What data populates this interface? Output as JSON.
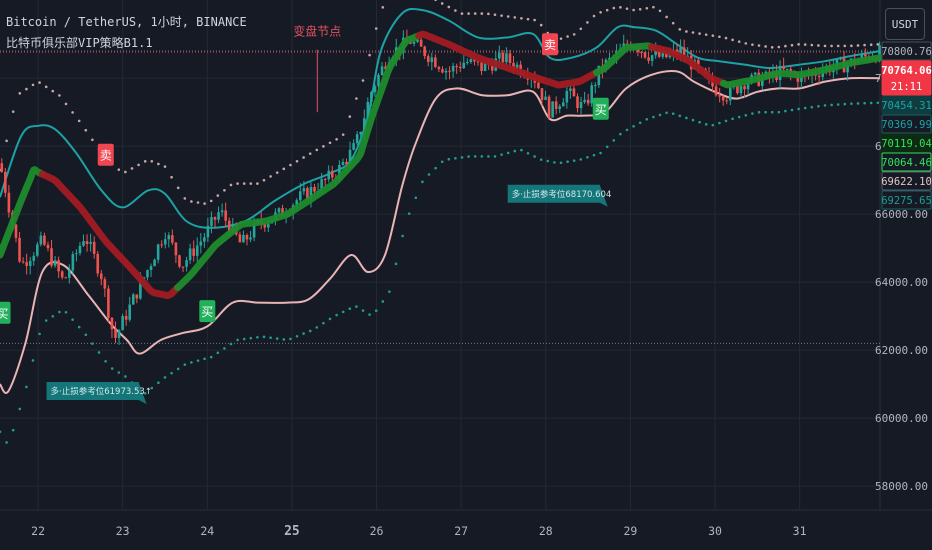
{
  "header": {
    "symbol_line": "Bitcoin / TetherUS, 1小时, BINANCE",
    "indicator_name": "比特币俱乐部VIP策略B1.1",
    "currency_button": "USDT"
  },
  "colors": {
    "background": "#161a25",
    "grid": "#242832",
    "candle_up": "#26a69a",
    "candle_down": "#ef5350",
    "ma_up": "#1e8c2c",
    "ma_down": "#a11b22",
    "upper_band": "#1ca2a5",
    "lower_band": "#e8b4b4",
    "upper_dots": "#c9a6a6",
    "lower_dots": "#1f9e8f",
    "sell_badge": "#f04652",
    "buy_badge": "#22b15a",
    "stop_label": "#15767a",
    "annotation_text": "#e0505f"
  },
  "chart_data": {
    "type": "candlestick",
    "symbol": "BTCUSDT",
    "interval": "1h",
    "ylim": [
      57300,
      72300
    ],
    "y_ticks": [
      58000,
      60000,
      62000,
      64000,
      66000,
      68000,
      70000
    ],
    "x_range": [
      21.55,
      31.95
    ],
    "x_ticks": [
      {
        "x": 22,
        "label": "22",
        "bold": false
      },
      {
        "x": 23,
        "label": "23",
        "bold": false
      },
      {
        "x": 24,
        "label": "24",
        "bold": false
      },
      {
        "x": 25,
        "label": "25",
        "bold": true
      },
      {
        "x": 26,
        "label": "26",
        "bold": false
      },
      {
        "x": 27,
        "label": "27",
        "bold": false
      },
      {
        "x": 28,
        "label": "28",
        "bold": false
      },
      {
        "x": 29,
        "label": "29",
        "bold": false
      },
      {
        "x": 30,
        "label": "30",
        "bold": false
      },
      {
        "x": 31,
        "label": "31",
        "bold": false
      }
    ],
    "y_axis_labels": [
      {
        "value": 70800.76,
        "text": "70800.76",
        "bg": "#161a25",
        "fg": "#b2b5be",
        "border": "#4a4f5c"
      },
      {
        "value": 70764.06,
        "text": "70764.06",
        "sub": "21:11",
        "bg": "#f23645",
        "fg": "#ffffff",
        "border": "#f23645"
      },
      {
        "value": 70454.31,
        "text": "70454.31",
        "bg": "#0f3d3f",
        "fg": "#1ca2a5",
        "border": "#0f3d3f"
      },
      {
        "value": 70369.99,
        "text": "70369.99",
        "bg": "#161a25",
        "fg": "#1ca2a5",
        "border": "#1a5f62"
      },
      {
        "value": 70119.04,
        "text": "70119.04",
        "bg": "#0d2a12",
        "fg": "#2fe35a",
        "border": "#0d2a12"
      },
      {
        "value": 70064.46,
        "text": "70064.46",
        "bg": "#161a25",
        "fg": "#2fe35a",
        "border": "#2fe35a"
      },
      {
        "value": 69622.1,
        "text": "69622.10",
        "bg": "#161a25",
        "fg": "#e6c5c5",
        "border": "#555a66"
      },
      {
        "value": 69275.65,
        "text": "69275.65",
        "bg": "#161a25",
        "fg": "#1f9e8f",
        "border": "#1a5f62"
      }
    ],
    "h_lines": [
      {
        "value": 70800.76,
        "color": "#8a8f99"
      },
      {
        "value": 70764.06,
        "color": "#f23645"
      },
      {
        "value": 62200,
        "color": "#8a8f99"
      }
    ],
    "ohlc_path": [
      [
        21.55,
        67500
      ],
      [
        21.8,
        64500
      ],
      [
        22.05,
        65200
      ],
      [
        22.3,
        64000
      ],
      [
        22.55,
        65400
      ],
      [
        22.75,
        64200
      ],
      [
        22.9,
        62300
      ],
      [
        23.05,
        63100
      ],
      [
        23.3,
        64400
      ],
      [
        23.5,
        65500
      ],
      [
        23.7,
        64500
      ],
      [
        23.95,
        65300
      ],
      [
        24.15,
        66100
      ],
      [
        24.4,
        65100
      ],
      [
        24.6,
        65700
      ],
      [
        24.85,
        66000
      ],
      [
        25.1,
        66500
      ],
      [
        25.35,
        66900
      ],
      [
        25.55,
        67300
      ],
      [
        25.75,
        68000
      ],
      [
        25.95,
        69700
      ],
      [
        26.15,
        70700
      ],
      [
        26.4,
        71100
      ],
      [
        26.6,
        70700
      ],
      [
        26.85,
        70200
      ],
      [
        27.05,
        70500
      ],
      [
        27.25,
        70300
      ],
      [
        27.5,
        70600
      ],
      [
        27.7,
        70300
      ],
      [
        27.85,
        70100
      ],
      [
        28.05,
        69000
      ],
      [
        28.25,
        69600
      ],
      [
        28.45,
        69100
      ],
      [
        28.65,
        70300
      ],
      [
        28.85,
        70700
      ],
      [
        29.0,
        71100
      ],
      [
        29.2,
        70700
      ],
      [
        29.4,
        70600
      ],
      [
        29.6,
        70800
      ],
      [
        29.8,
        70200
      ],
      [
        30.0,
        69700
      ],
      [
        30.15,
        69500
      ],
      [
        30.35,
        69900
      ],
      [
        30.6,
        70000
      ],
      [
        30.8,
        70200
      ],
      [
        31.05,
        70000
      ],
      [
        31.3,
        70300
      ],
      [
        31.55,
        70400
      ],
      [
        31.75,
        70600
      ],
      [
        31.95,
        70760
      ]
    ],
    "ma_line": [
      [
        21.55,
        64800
      ],
      [
        21.8,
        66400
      ],
      [
        21.95,
        67300
      ],
      [
        22.2,
        67000
      ],
      [
        22.5,
        66200
      ],
      [
        22.8,
        65200
      ],
      [
        23.1,
        64400
      ],
      [
        23.35,
        63700
      ],
      [
        23.55,
        63600
      ],
      [
        23.8,
        64200
      ],
      [
        24.1,
        65100
      ],
      [
        24.4,
        65700
      ],
      [
        24.7,
        65800
      ],
      [
        24.95,
        66000
      ],
      [
        25.2,
        66400
      ],
      [
        25.5,
        66900
      ],
      [
        25.8,
        67700
      ],
      [
        25.95,
        68900
      ],
      [
        26.15,
        70300
      ],
      [
        26.35,
        71100
      ],
      [
        26.55,
        71300
      ],
      [
        26.85,
        71000
      ],
      [
        27.2,
        70600
      ],
      [
        27.55,
        70300
      ],
      [
        27.9,
        70000
      ],
      [
        28.15,
        69800
      ],
      [
        28.4,
        69900
      ],
      [
        28.7,
        70300
      ],
      [
        28.95,
        70900
      ],
      [
        29.2,
        70950
      ],
      [
        29.45,
        70800
      ],
      [
        29.7,
        70500
      ],
      [
        29.95,
        70000
      ],
      [
        30.15,
        69800
      ],
      [
        30.45,
        69950
      ],
      [
        30.75,
        70150
      ],
      [
        31.0,
        70100
      ],
      [
        31.3,
        70250
      ],
      [
        31.6,
        70450
      ],
      [
        31.95,
        70600
      ]
    ],
    "ma_segments": [
      {
        "from": 21.55,
        "to": 22.05,
        "color": "up"
      },
      {
        "from": 22.05,
        "to": 23.65,
        "color": "down"
      },
      {
        "from": 23.65,
        "to": 26.5,
        "color": "up"
      },
      {
        "from": 26.5,
        "to": 27.95,
        "color": "down"
      },
      {
        "from": 27.95,
        "to": 28.6,
        "color": "down"
      },
      {
        "from": 28.6,
        "to": 29.25,
        "color": "up"
      },
      {
        "from": 29.25,
        "to": 30.1,
        "color": "down"
      },
      {
        "from": 30.1,
        "to": 31.95,
        "color": "up"
      }
    ],
    "upper_band": [
      [
        21.55,
        66500
      ],
      [
        21.8,
        68300
      ],
      [
        22.0,
        68600
      ],
      [
        22.2,
        68500
      ],
      [
        22.45,
        67800
      ],
      [
        22.75,
        66700
      ],
      [
        23.0,
        66200
      ],
      [
        23.3,
        66700
      ],
      [
        23.5,
        66600
      ],
      [
        23.75,
        65800
      ],
      [
        24.05,
        65600
      ],
      [
        24.45,
        65800
      ],
      [
        24.8,
        66400
      ],
      [
        25.15,
        66900
      ],
      [
        25.45,
        67200
      ],
      [
        25.7,
        67600
      ],
      [
        25.9,
        68900
      ],
      [
        26.05,
        70800
      ],
      [
        26.3,
        71900
      ],
      [
        26.55,
        72000
      ],
      [
        26.85,
        71700
      ],
      [
        27.2,
        71200
      ],
      [
        27.55,
        71200
      ],
      [
        27.85,
        71300
      ],
      [
        28.05,
        70600
      ],
      [
        28.3,
        70600
      ],
      [
        28.6,
        70900
      ],
      [
        28.85,
        71500
      ],
      [
        29.05,
        71500
      ],
      [
        29.3,
        71400
      ],
      [
        29.55,
        71000
      ],
      [
        29.8,
        70600
      ],
      [
        30.05,
        70500
      ],
      [
        30.35,
        70400
      ],
      [
        30.65,
        70300
      ],
      [
        31.0,
        70400
      ],
      [
        31.3,
        70500
      ],
      [
        31.6,
        70650
      ],
      [
        31.95,
        70800
      ]
    ],
    "lower_band": [
      [
        21.55,
        61000
      ],
      [
        21.65,
        60800
      ],
      [
        21.85,
        62200
      ],
      [
        22.05,
        64300
      ],
      [
        22.3,
        64500
      ],
      [
        22.6,
        63600
      ],
      [
        22.85,
        62800
      ],
      [
        23.05,
        62300
      ],
      [
        23.2,
        61900
      ],
      [
        23.45,
        62300
      ],
      [
        23.7,
        62500
      ],
      [
        24.0,
        62700
      ],
      [
        24.3,
        63400
      ],
      [
        24.6,
        63400
      ],
      [
        24.95,
        63400
      ],
      [
        25.2,
        63500
      ],
      [
        25.45,
        64100
      ],
      [
        25.7,
        64800
      ],
      [
        25.9,
        64300
      ],
      [
        26.1,
        64800
      ],
      [
        26.3,
        66800
      ],
      [
        26.45,
        68000
      ],
      [
        26.7,
        69400
      ],
      [
        26.95,
        69700
      ],
      [
        27.25,
        69500
      ],
      [
        27.55,
        69500
      ],
      [
        27.85,
        69600
      ],
      [
        28.05,
        68800
      ],
      [
        28.25,
        68900
      ],
      [
        28.45,
        68900
      ],
      [
        28.7,
        69000
      ],
      [
        28.95,
        69700
      ],
      [
        29.25,
        70100
      ],
      [
        29.55,
        70200
      ],
      [
        29.75,
        69900
      ],
      [
        30.0,
        69600
      ],
      [
        30.25,
        69400
      ],
      [
        30.5,
        69600
      ],
      [
        30.75,
        69700
      ],
      [
        31.0,
        69700
      ],
      [
        31.3,
        69900
      ],
      [
        31.6,
        70000
      ],
      [
        31.95,
        70000
      ]
    ],
    "upper_dots": [
      [
        21.55,
        67300
      ],
      [
        21.75,
        69500
      ],
      [
        22.0,
        69900
      ],
      [
        22.25,
        69500
      ],
      [
        22.5,
        68700
      ],
      [
        22.75,
        67800
      ],
      [
        23.0,
        67200
      ],
      [
        23.3,
        67600
      ],
      [
        23.5,
        67400
      ],
      [
        23.75,
        66400
      ],
      [
        24.0,
        66300
      ],
      [
        24.3,
        66900
      ],
      [
        24.6,
        66900
      ],
      [
        24.95,
        67400
      ],
      [
        25.3,
        67900
      ],
      [
        25.6,
        68300
      ],
      [
        25.85,
        70000
      ],
      [
        26.05,
        72000
      ],
      [
        26.25,
        72700
      ],
      [
        26.45,
        72800
      ],
      [
        26.7,
        72300
      ],
      [
        27.0,
        71900
      ],
      [
        27.3,
        71900
      ],
      [
        27.6,
        71800
      ],
      [
        27.9,
        71700
      ],
      [
        28.1,
        71100
      ],
      [
        28.35,
        71300
      ],
      [
        28.6,
        71900
      ],
      [
        28.85,
        72100
      ],
      [
        29.05,
        72000
      ],
      [
        29.3,
        72100
      ],
      [
        29.6,
        71400
      ],
      [
        29.85,
        71300
      ],
      [
        30.1,
        71200
      ],
      [
        30.4,
        71000
      ],
      [
        30.7,
        70900
      ],
      [
        31.0,
        71000
      ],
      [
        31.3,
        70950
      ],
      [
        31.6,
        70950
      ],
      [
        31.95,
        71000
      ]
    ],
    "lower_dots": [
      [
        21.55,
        59600
      ],
      [
        21.65,
        59200
      ],
      [
        21.85,
        60800
      ],
      [
        22.05,
        62800
      ],
      [
        22.3,
        63200
      ],
      [
        22.55,
        62500
      ],
      [
        22.85,
        61500
      ],
      [
        23.05,
        61200
      ],
      [
        23.25,
        60700
      ],
      [
        23.5,
        61200
      ],
      [
        23.75,
        61600
      ],
      [
        24.05,
        61800
      ],
      [
        24.35,
        62300
      ],
      [
        24.65,
        62400
      ],
      [
        24.95,
        62300
      ],
      [
        25.25,
        62600
      ],
      [
        25.5,
        63000
      ],
      [
        25.75,
        63300
      ],
      [
        25.95,
        63000
      ],
      [
        26.15,
        63700
      ],
      [
        26.35,
        65800
      ],
      [
        26.55,
        67000
      ],
      [
        26.8,
        67600
      ],
      [
        27.1,
        67700
      ],
      [
        27.4,
        67700
      ],
      [
        27.7,
        67900
      ],
      [
        27.95,
        67600
      ],
      [
        28.15,
        67500
      ],
      [
        28.4,
        67600
      ],
      [
        28.65,
        67800
      ],
      [
        28.9,
        68400
      ],
      [
        29.2,
        68800
      ],
      [
        29.45,
        69000
      ],
      [
        29.7,
        68800
      ],
      [
        29.95,
        68600
      ],
      [
        30.2,
        68800
      ],
      [
        30.5,
        69000
      ],
      [
        30.75,
        69000
      ],
      [
        31.0,
        69100
      ],
      [
        31.3,
        69200
      ],
      [
        31.6,
        69250
      ],
      [
        31.95,
        69280
      ]
    ],
    "signals": [
      {
        "type": "sell",
        "text": "卖",
        "x": 22.8,
        "y": 67750
      },
      {
        "type": "sell",
        "text": "卖",
        "x": 28.05,
        "y": 71000
      },
      {
        "type": "buy",
        "text": "买",
        "x": 21.58,
        "y": 63100
      },
      {
        "type": "buy",
        "text": "买",
        "x": 24.0,
        "y": 63150
      },
      {
        "type": "buy",
        "text": "买",
        "x": 28.65,
        "y": 69100
      }
    ],
    "stop_labels": [
      {
        "text": "多·止损参考位61973.53↑",
        "x": 22.1,
        "y": 60800
      },
      {
        "text": "多·止损参考位68170.604",
        "x": 27.55,
        "y": 66600
      }
    ],
    "annotations": [
      {
        "text": "变盘节点",
        "x": 25.3,
        "y": 71250,
        "line_to": 69000
      }
    ]
  }
}
